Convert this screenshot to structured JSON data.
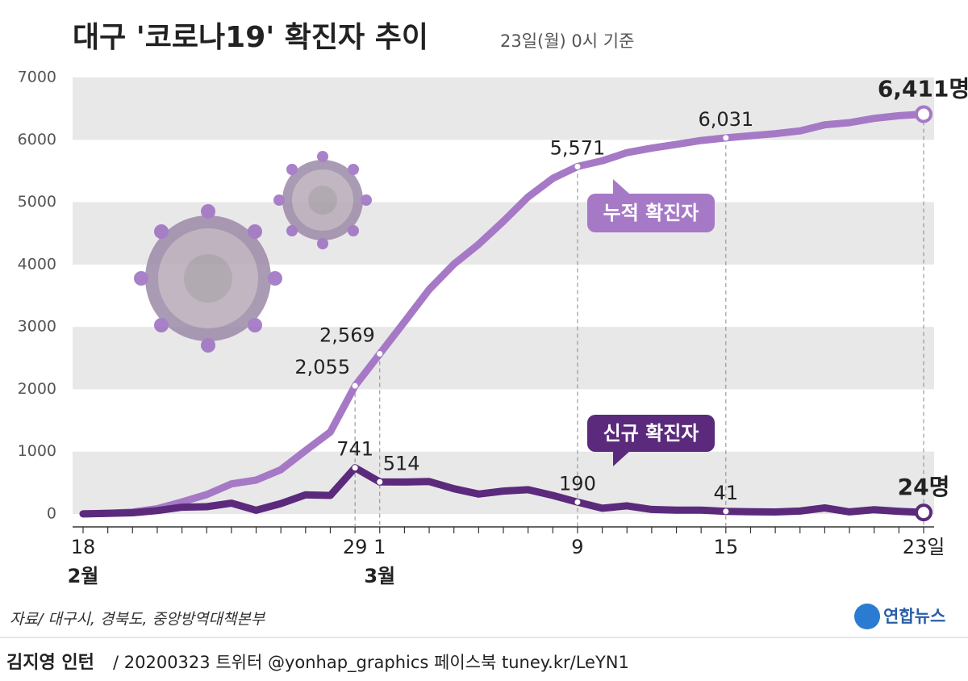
{
  "chart_data": {
    "type": "line",
    "title": "대구 '코로나19' 확진자 추이",
    "subtitle": "23일(월) 0시 기준",
    "categories": [
      "18",
      null,
      null,
      null,
      null,
      null,
      null,
      null,
      null,
      null,
      null,
      "29",
      "1",
      null,
      null,
      null,
      null,
      null,
      null,
      null,
      "9",
      null,
      null,
      null,
      null,
      null,
      "15",
      null,
      null,
      null,
      null,
      null,
      null,
      null,
      "23일"
    ],
    "month_labels": [
      "2월",
      "3월"
    ],
    "ylim": [
      0,
      7000
    ],
    "yticks": [
      0,
      1000,
      2000,
      3000,
      4000,
      5000,
      6000,
      7000
    ],
    "grid": true,
    "series": [
      {
        "name": "누적 확진자",
        "color": "#a679c6",
        "values": [
          1,
          11,
          30,
          84,
          193,
          310,
          483,
          543,
          710,
          1017,
          1314,
          2055,
          2569,
          3081,
          3601,
          4006,
          4326,
          4693,
          5084,
          5381,
          5571,
          5663,
          5794,
          5867,
          5928,
          5990,
          6031,
          6066,
          6098,
          6144,
          6241,
          6275,
          6344,
          6387,
          6411
        ],
        "value_labels": [
          null,
          null,
          null,
          null,
          null,
          null,
          null,
          null,
          null,
          null,
          null,
          "2,055",
          "2,569",
          null,
          null,
          null,
          null,
          null,
          null,
          null,
          "5,571",
          null,
          null,
          null,
          null,
          null,
          "6,031",
          null,
          null,
          null,
          null,
          null,
          null,
          null,
          "6,411명"
        ]
      },
      {
        "name": "신규 확진자",
        "color": "#5b2a7c",
        "values": [
          1,
          10,
          19,
          54,
          109,
          117,
          173,
          60,
          167,
          307,
          297,
          741,
          514,
          512,
          520,
          405,
          320,
          367,
          390,
          297,
          190,
          92,
          131,
          73,
          61,
          62,
          41,
          35,
          32,
          46,
          97,
          34,
          69,
          43,
          24
        ],
        "value_labels": [
          null,
          null,
          null,
          null,
          null,
          null,
          null,
          null,
          null,
          null,
          null,
          "741",
          "514",
          null,
          null,
          null,
          null,
          null,
          null,
          null,
          "190",
          null,
          null,
          null,
          null,
          null,
          "41",
          null,
          null,
          null,
          null,
          null,
          null,
          null,
          "24명"
        ]
      }
    ]
  },
  "source": "자료/ 대구시, 경북도, 중앙방역대책본부",
  "logo": "연합뉴스",
  "footer": {
    "author": "김지영 인턴",
    "info": "/ 20200323 트위터 @yonhap_graphics  페이스북 tuney.kr/LeYN1"
  }
}
